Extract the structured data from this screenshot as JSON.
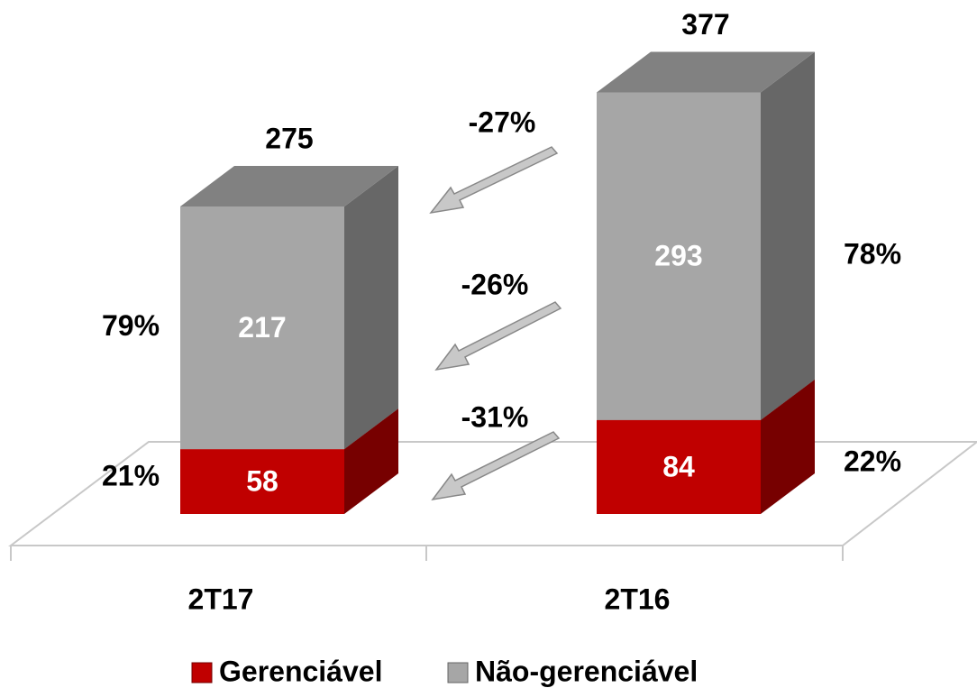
{
  "chart_data": {
    "type": "bar3d_stacked",
    "categories": [
      "2T17",
      "2T16"
    ],
    "series": [
      {
        "name": "Gerenciável",
        "color": "#c00000",
        "values": [
          58,
          84
        ],
        "shares": [
          21,
          22
        ],
        "share_labels": [
          "21%",
          "22%"
        ],
        "change": -31,
        "change_label": "-31%"
      },
      {
        "name": "Não-gerenciável",
        "color": "#a6a6a6",
        "values": [
          217,
          293
        ],
        "shares": [
          79,
          78
        ],
        "share_labels": [
          "79%",
          "78%"
        ],
        "change": -26,
        "change_label": "-26%"
      }
    ],
    "totals": [
      275,
      377
    ],
    "total_change": -27,
    "total_change_label": "-27%"
  }
}
